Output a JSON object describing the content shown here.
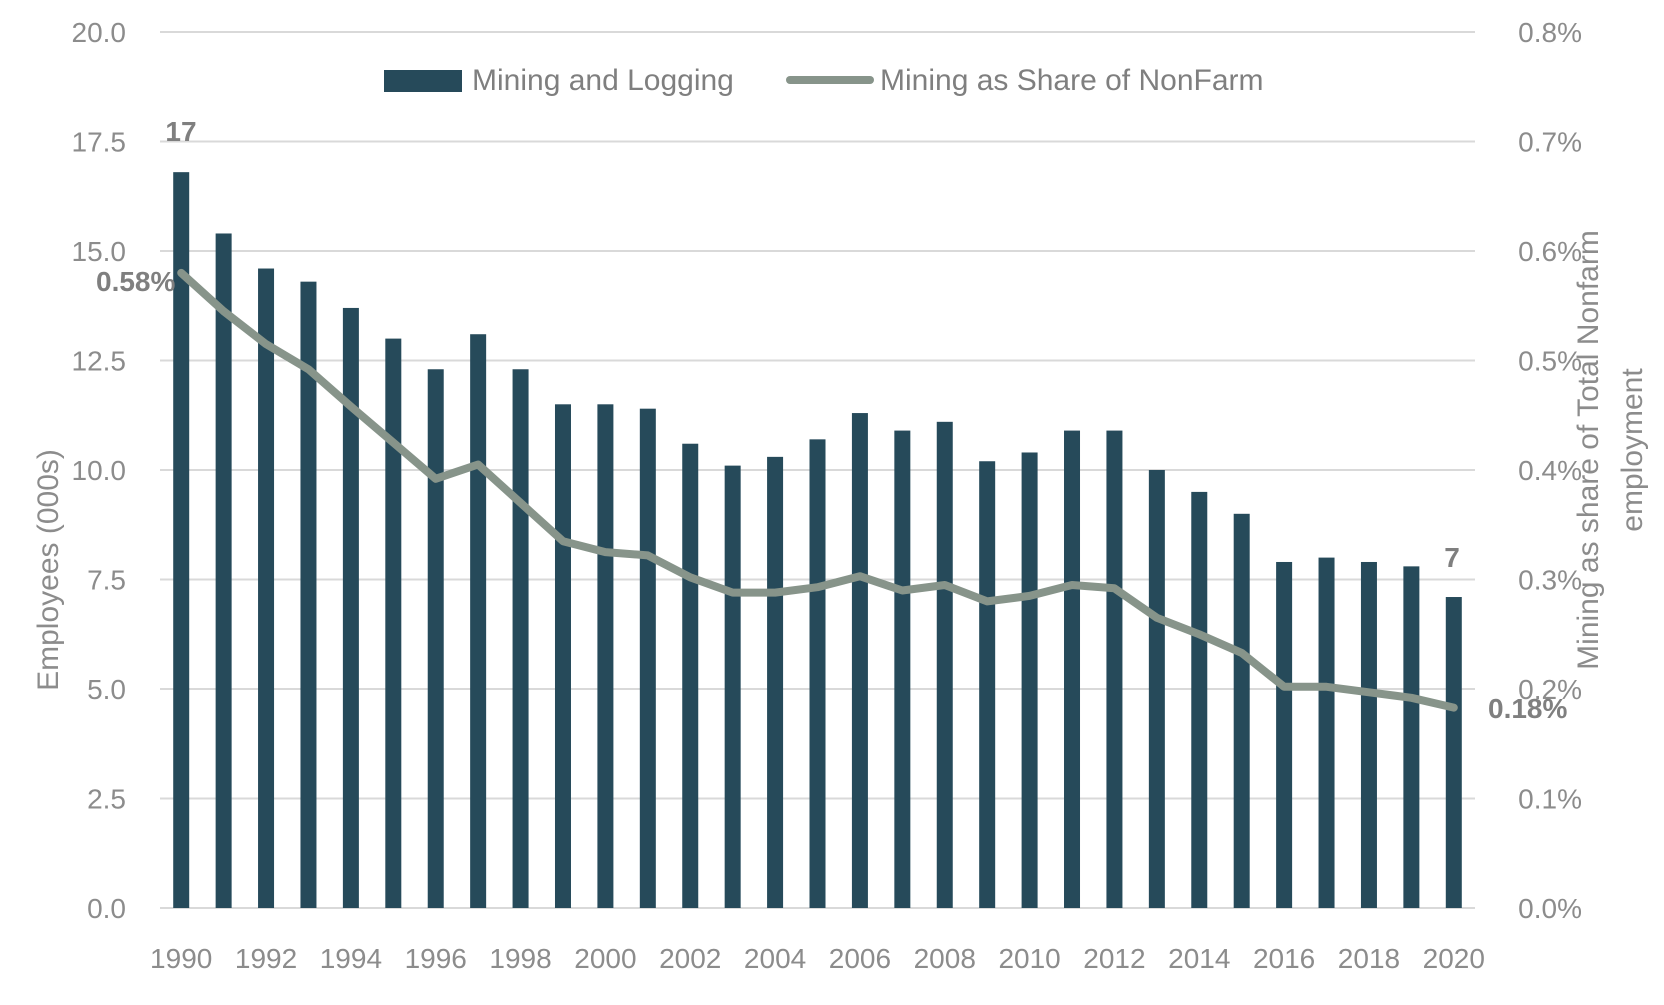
{
  "chart_data": {
    "type": "bar",
    "categories": [
      "1990",
      "1991",
      "1992",
      "1993",
      "1994",
      "1995",
      "1996",
      "1997",
      "1998",
      "1999",
      "2000",
      "2001",
      "2002",
      "2003",
      "2004",
      "2005",
      "2006",
      "2007",
      "2008",
      "2009",
      "2010",
      "2011",
      "2012",
      "2013",
      "2014",
      "2015",
      "2016",
      "2017",
      "2018",
      "2019",
      "2020"
    ],
    "x_tick_labels": [
      "1990",
      "1992",
      "1994",
      "1996",
      "1998",
      "2000",
      "2002",
      "2004",
      "2006",
      "2008",
      "2010",
      "2012",
      "2014",
      "2016",
      "2018",
      "2020"
    ],
    "series": [
      {
        "name": "Mining and Logging",
        "type": "bar",
        "axis": "left",
        "color": "#264a5a",
        "values": [
          16.8,
          15.4,
          14.6,
          14.3,
          13.7,
          13.0,
          12.3,
          13.1,
          12.3,
          11.5,
          11.5,
          11.4,
          10.6,
          10.1,
          10.3,
          10.7,
          11.3,
          10.9,
          11.1,
          10.2,
          10.4,
          10.9,
          10.9,
          10.0,
          9.5,
          9.0,
          7.9,
          8.0,
          7.9,
          7.8,
          7.1
        ]
      },
      {
        "name": "Mining as Share of NonFarm",
        "type": "line",
        "axis": "right",
        "color": "#87948a",
        "values": [
          0.58,
          0.545,
          0.515,
          0.492,
          0.458,
          0.425,
          0.392,
          0.405,
          0.37,
          0.335,
          0.325,
          0.322,
          0.302,
          0.288,
          0.288,
          0.293,
          0.303,
          0.29,
          0.295,
          0.28,
          0.285,
          0.295,
          0.292,
          0.265,
          0.25,
          0.233,
          0.202,
          0.202,
          0.197,
          0.192,
          0.183
        ]
      }
    ],
    "left_axis": {
      "title": "Employees (000s)",
      "range": [
        0,
        20
      ],
      "tick_labels": [
        "0.0",
        "2.5",
        "5.0",
        "7.5",
        "10.0",
        "12.5",
        "15.0",
        "17.5",
        "20.0"
      ]
    },
    "right_axis": {
      "title_line1": "Mining as share of Total Nonfarm",
      "title_line2": "employment",
      "range": [
        0,
        0.8
      ],
      "tick_labels": [
        "0.0%",
        "0.1%",
        "0.2%",
        "0.3%",
        "0.4%",
        "0.5%",
        "0.6%",
        "0.7%",
        "0.8%"
      ]
    },
    "data_labels": {
      "bar_first": "17",
      "bar_last": "7",
      "line_first": "0.58%",
      "line_last": "0.18%"
    },
    "grid": true,
    "legend_position": "top"
  }
}
